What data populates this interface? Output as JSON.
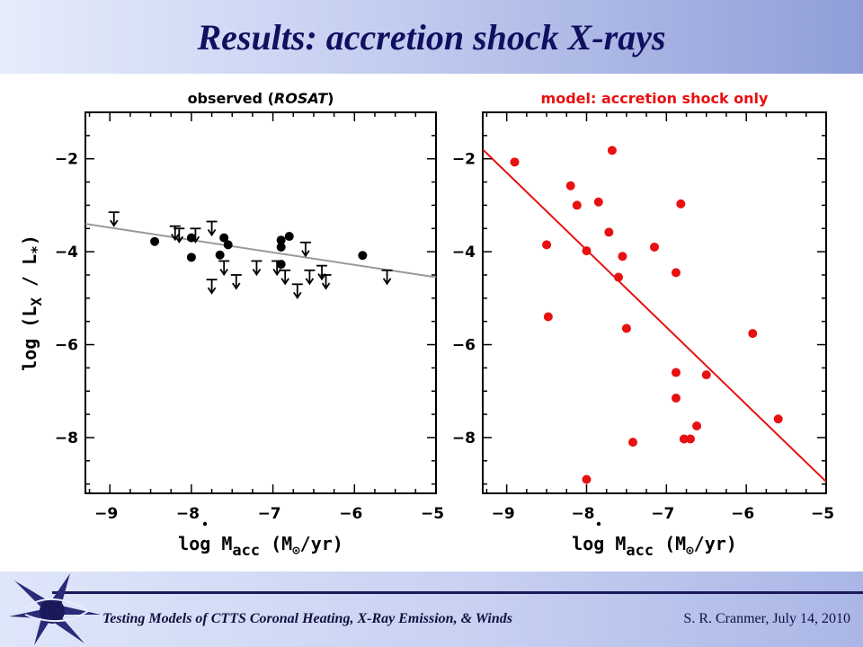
{
  "slide": {
    "title": "Results:  accretion shock X-rays",
    "footer_left": "Testing Models of CTTS Coronal Heating, X-Ray Emission, & Winds",
    "footer_right": "S. R. Cranmer, July 14, 2010"
  },
  "colors": {
    "left": "#000000",
    "right": "#e81010",
    "left_fit": "#999999",
    "right_fit": "#e81010"
  },
  "chart_data": [
    {
      "type": "scatter",
      "title_prefix": "observed (",
      "title_italic": "ROSAT",
      "title_suffix": ")",
      "xlabel": "log Ṁacc (M⊙/yr)",
      "ylabel": "log (LX / L*)",
      "xlim": [
        -9.3,
        -5
      ],
      "ylim": [
        -9.2,
        -1
      ],
      "xticks": [
        -9,
        -8,
        -7,
        -6,
        -5
      ],
      "yticks": [
        -2,
        -4,
        -6,
        -8
      ],
      "points": [
        {
          "x": -8.45,
          "y": -3.78
        },
        {
          "x": -8.0,
          "y": -3.7
        },
        {
          "x": -8.0,
          "y": -4.12
        },
        {
          "x": -7.6,
          "y": -3.7
        },
        {
          "x": -7.55,
          "y": -3.85
        },
        {
          "x": -7.65,
          "y": -4.07
        },
        {
          "x": -6.9,
          "y": -3.75
        },
        {
          "x": -6.8,
          "y": -3.67
        },
        {
          "x": -6.9,
          "y": -3.9
        },
        {
          "x": -6.9,
          "y": -4.27
        },
        {
          "x": -5.9,
          "y": -4.08
        }
      ],
      "upper_limits": [
        {
          "x": -8.95,
          "y": -3.15
        },
        {
          "x": -8.2,
          "y": -3.45
        },
        {
          "x": -8.15,
          "y": -3.5
        },
        {
          "x": -7.95,
          "y": -3.5
        },
        {
          "x": -7.75,
          "y": -3.35
        },
        {
          "x": -7.6,
          "y": -4.2
        },
        {
          "x": -7.75,
          "y": -4.6
        },
        {
          "x": -7.45,
          "y": -4.5
        },
        {
          "x": -7.2,
          "y": -4.2
        },
        {
          "x": -6.95,
          "y": -4.2
        },
        {
          "x": -6.85,
          "y": -4.4
        },
        {
          "x": -6.7,
          "y": -4.7
        },
        {
          "x": -6.55,
          "y": -4.4
        },
        {
          "x": -6.4,
          "y": -4.3
        },
        {
          "x": -6.6,
          "y": -3.8
        },
        {
          "x": -6.35,
          "y": -4.5
        },
        {
          "x": -5.6,
          "y": -4.4
        }
      ],
      "fit": {
        "x": [
          -9.3,
          -5
        ],
        "y": [
          -3.4,
          -4.55
        ]
      }
    },
    {
      "type": "scatter",
      "title": "model: accretion shock only",
      "xlabel": "log Ṁacc (M⊙/yr)",
      "xlim": [
        -9.3,
        -5
      ],
      "ylim": [
        -9.2,
        -1
      ],
      "xticks": [
        -9,
        -8,
        -7,
        -6,
        -5
      ],
      "yticks": [
        -2,
        -4,
        -6,
        -8
      ],
      "points": [
        {
          "x": -8.9,
          "y": -2.07
        },
        {
          "x": -8.5,
          "y": -3.85
        },
        {
          "x": -8.48,
          "y": -5.4
        },
        {
          "x": -8.2,
          "y": -2.58
        },
        {
          "x": -8.12,
          "y": -3.0
        },
        {
          "x": -8.0,
          "y": -3.98
        },
        {
          "x": -8.0,
          "y": -8.9
        },
        {
          "x": -7.85,
          "y": -2.93
        },
        {
          "x": -7.72,
          "y": -3.58
        },
        {
          "x": -7.68,
          "y": -1.82
        },
        {
          "x": -7.55,
          "y": -4.1
        },
        {
          "x": -7.6,
          "y": -4.55
        },
        {
          "x": -7.5,
          "y": -5.65
        },
        {
          "x": -7.42,
          "y": -8.1
        },
        {
          "x": -7.15,
          "y": -3.9
        },
        {
          "x": -6.88,
          "y": -4.45
        },
        {
          "x": -6.88,
          "y": -6.6
        },
        {
          "x": -6.88,
          "y": -7.15
        },
        {
          "x": -6.82,
          "y": -2.97
        },
        {
          "x": -6.78,
          "y": -8.03
        },
        {
          "x": -6.7,
          "y": -8.03
        },
        {
          "x": -6.62,
          "y": -7.75
        },
        {
          "x": -6.5,
          "y": -6.65
        },
        {
          "x": -5.92,
          "y": -5.76
        },
        {
          "x": -5.6,
          "y": -7.6
        }
      ],
      "fit": {
        "x": [
          -9.3,
          -5
        ],
        "y": [
          -1.8,
          -8.95
        ]
      }
    }
  ]
}
